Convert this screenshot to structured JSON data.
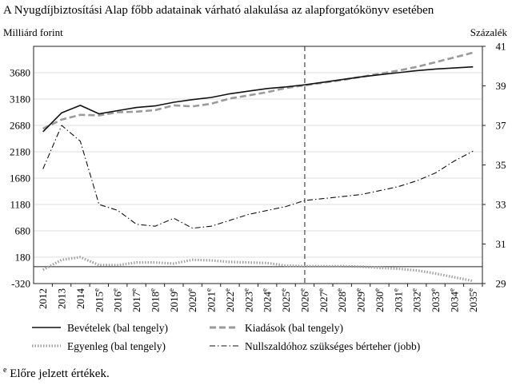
{
  "chart_data": {
    "type": "line",
    "title": "A Nyugdíjbiztosítási Alap főbb adatainak várható alakulása az alapforgatókönyv esetében",
    "ylabel_left": "Milliárd forint",
    "ylabel_right": "Százalék",
    "x": [
      "2012",
      "2013",
      "2014",
      "2015",
      "2016",
      "2017",
      "2018",
      "2019",
      "2020",
      "2021",
      "2022",
      "2023",
      "2024",
      "2025",
      "2026",
      "2027",
      "2028",
      "2029",
      "2030",
      "2031",
      "2032",
      "2033",
      "2034",
      "2035"
    ],
    "x_estimate_mark": "e",
    "x_estimate_from": "2015",
    "forecast_start": "2026",
    "y_left": {
      "min": -320,
      "max": 4180,
      "ticks": [
        -320,
        180,
        680,
        1180,
        1680,
        2180,
        2680,
        3180,
        3680
      ]
    },
    "y_right": {
      "min": 29,
      "max": 41,
      "ticks": [
        29,
        31,
        33,
        35,
        37,
        39,
        41
      ]
    },
    "grid": "horizontal",
    "series": [
      {
        "name": "Bevételek (bal tengely)",
        "axis": "left",
        "style": "solid",
        "color": "#111111",
        "values": [
          2560,
          2920,
          3060,
          2900,
          2960,
          3020,
          3050,
          3120,
          3170,
          3210,
          3280,
          3330,
          3380,
          3410,
          3450,
          3500,
          3550,
          3600,
          3640,
          3680,
          3720,
          3750,
          3770,
          3790
        ]
      },
      {
        "name": "Kiadások (bal tengely)",
        "axis": "left",
        "style": "dashed",
        "color": "#9a9a9a",
        "values": [
          2620,
          2790,
          2880,
          2870,
          2930,
          2940,
          2970,
          3060,
          3040,
          3090,
          3190,
          3250,
          3310,
          3390,
          3440,
          3490,
          3540,
          3600,
          3660,
          3720,
          3790,
          3880,
          3970,
          4060
        ]
      },
      {
        "name": "Egyenleg (bal tengely)",
        "axis": "left",
        "style": "dotted",
        "color": "#a0a0a0",
        "values": [
          -60,
          130,
          180,
          30,
          30,
          80,
          80,
          60,
          130,
          120,
          90,
          80,
          70,
          20,
          10,
          10,
          10,
          0,
          -20,
          -40,
          -70,
          -130,
          -200,
          -270
        ]
      },
      {
        "name": "Nullszaldóhoz szükséges bérteher (jobb)",
        "axis": "right",
        "style": "dashdot",
        "color": "#111111",
        "values": [
          34.8,
          37.0,
          36.2,
          33.0,
          32.7,
          32.0,
          31.9,
          32.3,
          31.8,
          31.9,
          32.2,
          32.5,
          32.7,
          32.9,
          33.2,
          33.3,
          33.4,
          33.5,
          33.7,
          33.9,
          34.2,
          34.6,
          35.2,
          35.7
        ]
      }
    ],
    "legend": [
      {
        "label": "Bevételek (bal tengely)",
        "style": "solid",
        "color": "#111111"
      },
      {
        "label": "Kiadások (bal tengely)",
        "style": "dashed",
        "color": "#9a9a9a"
      },
      {
        "label": "Egyenleg (bal tengely)",
        "style": "dotted",
        "color": "#a0a0a0"
      },
      {
        "label": "Nullszaldóhoz szükséges bérteher (jobb)",
        "style": "dashdot",
        "color": "#111111"
      }
    ],
    "legend_placement": "bottom",
    "footnote_mark": "e",
    "footnote_text": " Előre jelzett értékek."
  }
}
